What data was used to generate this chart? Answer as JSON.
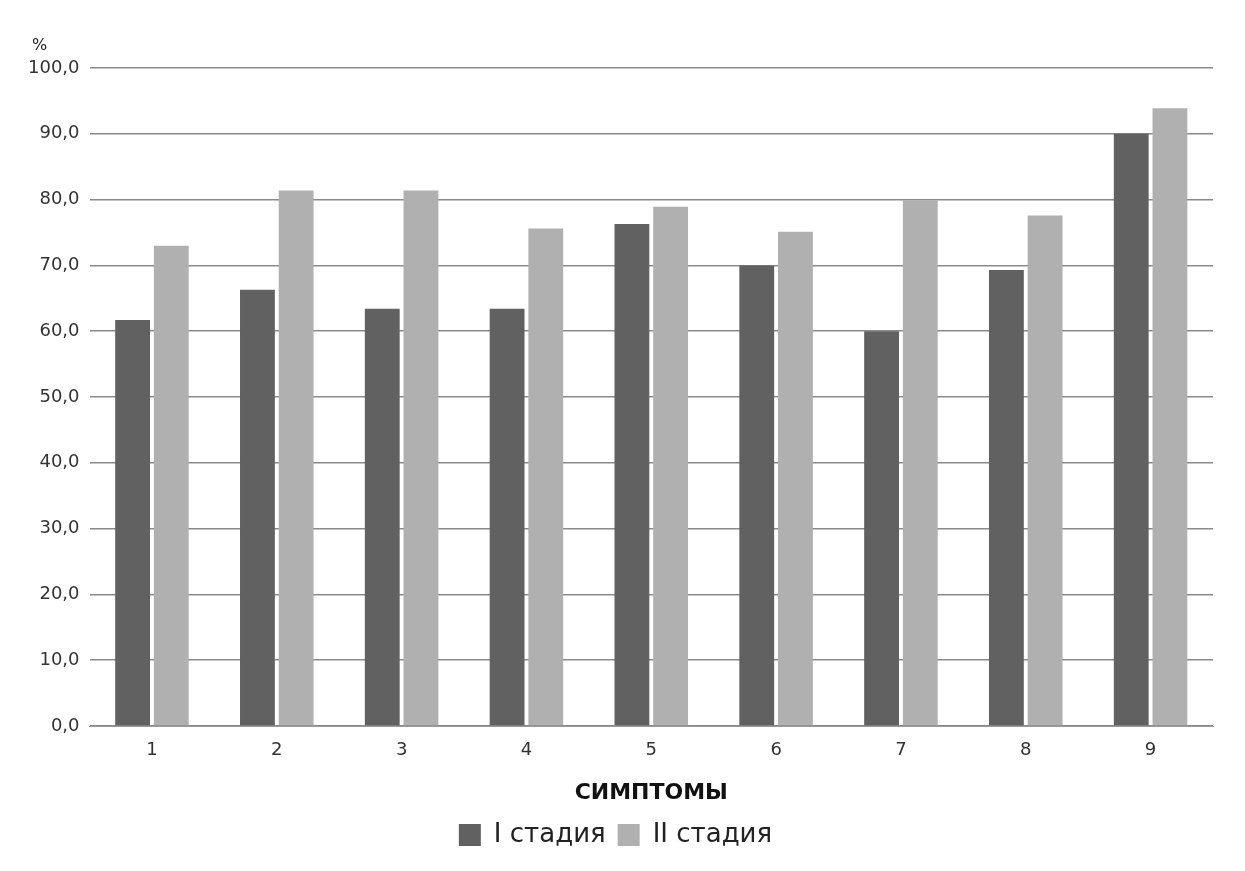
{
  "chart_data": {
    "type": "bar",
    "xlabel": "СИМПТОМЫ",
    "ylabel": "%",
    "categories": [
      "1",
      "2",
      "3",
      "4",
      "5",
      "6",
      "7",
      "8",
      "9"
    ],
    "series": [
      {
        "name": "I стадия",
        "color": "#616161",
        "values": [
          61.7,
          66.3,
          63.4,
          63.4,
          76.3,
          70.0,
          60.0,
          69.3,
          90.0
        ]
      },
      {
        "name": "II стадия",
        "color": "#b0b0b0",
        "values": [
          73.0,
          81.4,
          81.4,
          75.6,
          78.9,
          75.1,
          79.9,
          77.6,
          93.9
        ]
      }
    ],
    "ylim": [
      0,
      100
    ],
    "yticks": [
      {
        "value": 0,
        "label": "0,0"
      },
      {
        "value": 10,
        "label": "10,0"
      },
      {
        "value": 20,
        "label": "20,0"
      },
      {
        "value": 30,
        "label": "30,0"
      },
      {
        "value": 40,
        "label": "40,0"
      },
      {
        "value": 50,
        "label": "50,0"
      },
      {
        "value": 60,
        "label": "60,0"
      },
      {
        "value": 70,
        "label": "70,0"
      },
      {
        "value": 80,
        "label": "80,0"
      },
      {
        "value": 90,
        "label": "90,0"
      },
      {
        "value": 100,
        "label": "100,0"
      }
    ],
    "grid": "y",
    "legend": "bottom"
  }
}
